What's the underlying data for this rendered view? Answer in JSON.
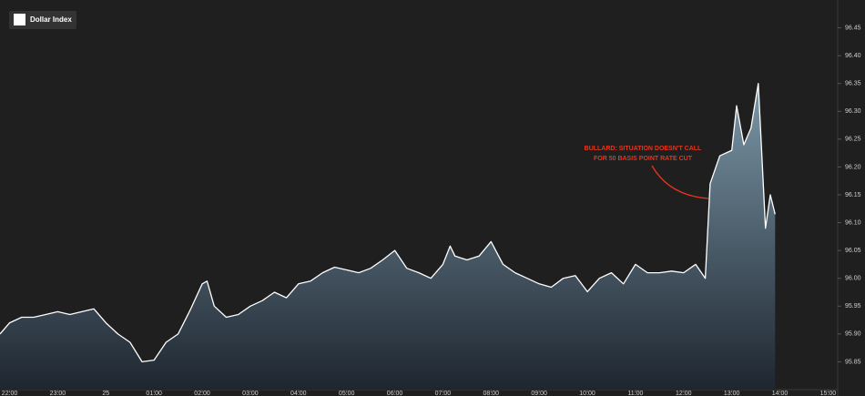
{
  "chart_data": {
    "type": "area",
    "annotation": [
      "BULLARD: SITUATION DOESN'T CALL",
      "FOR 50 BASIS POINT RATE CUT"
    ],
    "x": [
      -0.2,
      0,
      0.25,
      0.5,
      0.75,
      1.0,
      1.25,
      1.5,
      1.75,
      2.0,
      2.25,
      2.5,
      2.75,
      3.0,
      3.25,
      3.5,
      3.75,
      4.0,
      4.1,
      4.25,
      4.5,
      4.75,
      5.0,
      5.25,
      5.5,
      5.75,
      6.0,
      6.25,
      6.5,
      6.75,
      7.0,
      7.25,
      7.5,
      7.75,
      8.0,
      8.25,
      8.5,
      8.75,
      9.0,
      9.15,
      9.25,
      9.5,
      9.75,
      10.0,
      10.25,
      10.5,
      10.75,
      11.0,
      11.25,
      11.5,
      11.75,
      12.0,
      12.25,
      12.5,
      12.75,
      13.0,
      13.25,
      13.5,
      13.75,
      14.0,
      14.25,
      14.45,
      14.55,
      14.75,
      15.0,
      15.1,
      15.25,
      15.4,
      15.55,
      15.7,
      15.8,
      15.9
    ],
    "series": [
      {
        "name": "Dollar Index",
        "color": "#ffffff",
        "values": [
          95.9,
          95.92,
          95.93,
          95.93,
          95.935,
          95.94,
          95.935,
          95.94,
          95.945,
          95.92,
          95.9,
          95.885,
          95.85,
          95.853,
          95.885,
          95.9,
          95.943,
          95.99,
          95.995,
          95.95,
          95.93,
          95.935,
          95.95,
          95.96,
          95.975,
          95.965,
          95.99,
          95.995,
          96.01,
          96.02,
          96.015,
          96.01,
          96.018,
          96.033,
          96.05,
          96.018,
          96.01,
          96.0,
          96.025,
          96.058,
          96.04,
          96.033,
          96.04,
          96.066,
          96.025,
          96.01,
          96.0,
          95.99,
          95.984,
          96.0,
          96.005,
          95.976,
          96.0,
          96.01,
          95.99,
          96.025,
          96.01,
          96.01,
          96.013,
          96.01,
          96.025,
          96.0,
          96.17,
          96.22,
          96.23,
          96.31,
          96.24,
          96.27,
          96.35,
          96.09,
          96.15,
          96.115
        ]
      }
    ],
    "xlim": [
      -0.2,
      17.2
    ],
    "xticks": [
      {
        "value": 0,
        "label": "22:00"
      },
      {
        "value": 1,
        "label": "23:00"
      },
      {
        "value": 2,
        "label": "25"
      },
      {
        "value": 3,
        "label": "01:00"
      },
      {
        "value": 4,
        "label": "02:00"
      },
      {
        "value": 5,
        "label": "03:00"
      },
      {
        "value": 6,
        "label": "04:00"
      },
      {
        "value": 7,
        "label": "05:00"
      },
      {
        "value": 8,
        "label": "06:00"
      },
      {
        "value": 9,
        "label": "07:00"
      },
      {
        "value": 10,
        "label": "08:00"
      },
      {
        "value": 11,
        "label": "09:00"
      },
      {
        "value": 12,
        "label": "10:00"
      },
      {
        "value": 13,
        "label": "11:00"
      },
      {
        "value": 14,
        "label": "12:00"
      },
      {
        "value": 15,
        "label": "13:00"
      },
      {
        "value": 16,
        "label": "14:00"
      },
      {
        "value": 17,
        "label": "15:00"
      }
    ],
    "ylim": [
      95.8,
      96.5
    ],
    "yticks": [
      95.85,
      {
        "value": 95.9,
        "label": "95.90"
      },
      95.95,
      {
        "value": 96.0,
        "label": "96.00"
      },
      96.05,
      {
        "value": 96.1,
        "label": "96.10"
      },
      96.15,
      {
        "value": 96.2,
        "label": "96.20"
      },
      96.25,
      {
        "value": 96.3,
        "label": "96.30"
      },
      96.35,
      {
        "value": 96.4,
        "label": "96.40"
      },
      96.45
    ]
  }
}
